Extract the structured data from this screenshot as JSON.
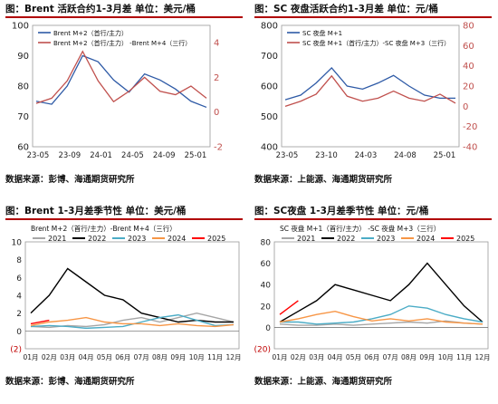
{
  "panels": [
    {
      "title": "图：Brent 活跃合约1-3月差   单位：美元/桶",
      "source": "数据来源：彭博、海通期货研究所"
    },
    {
      "title": "图：SC 夜盘活跃合约1-3月差   单位：元/桶",
      "source": "数据来源：上能源、海通期货研究所"
    },
    {
      "title": "图：Brent 1-3月差季节性    单位：美元/桶",
      "source": "数据来源：彭博、海通期货研究所"
    },
    {
      "title": "图：SC夜盘 1-3月差季节性   单位：元/桶",
      "source": "数据来源：上能源、海通期货研究所"
    }
  ],
  "colors": {
    "blue": "#2e5aa6",
    "red": "#c0504d",
    "gray": "#a6a6a6",
    "black": "#000000",
    "teal": "#4bacc6",
    "orange": "#f79646",
    "red2": "#ff0000",
    "title_rule": "#b00000"
  },
  "chart_data": [
    {
      "type": "line",
      "x_ticks": [
        "23-05",
        "23-09",
        "24-01",
        "24-05",
        "24-09",
        "25-01"
      ],
      "y_left": {
        "min": 60,
        "max": 100,
        "ticks": [
          60,
          70,
          80,
          90,
          100
        ]
      },
      "y_right": {
        "min": -2,
        "max": 5,
        "ticks": [
          -2,
          0,
          2,
          4
        ]
      },
      "series": [
        {
          "name": "Brent M+2（首行/主力）",
          "axis": "left",
          "color": "blue",
          "x": [
            0,
            2,
            4,
            6,
            8,
            10,
            12,
            14,
            16,
            18,
            20,
            22
          ],
          "values": [
            75,
            74,
            80,
            90,
            88,
            82,
            78,
            84,
            82,
            79,
            75,
            73
          ]
        },
        {
          "name": "Brent M+2（首行/主力） -Brent M+4（三行）",
          "axis": "right",
          "color": "red",
          "x": [
            0,
            2,
            4,
            6,
            8,
            10,
            12,
            14,
            16,
            18,
            20,
            22
          ],
          "values": [
            0.5,
            0.8,
            1.8,
            3.5,
            1.8,
            0.6,
            1.2,
            2.0,
            1.2,
            1.0,
            1.5,
            0.8
          ]
        }
      ]
    },
    {
      "type": "line",
      "x_ticks": [
        "23-05",
        "23-10",
        "24-03",
        "24-08",
        "25-01"
      ],
      "y_left": {
        "min": 400,
        "max": 800,
        "ticks": [
          400,
          500,
          600,
          700,
          800
        ]
      },
      "y_right": {
        "min": -40,
        "max": 80,
        "ticks": [
          -40,
          -20,
          0,
          20,
          40,
          60,
          80
        ]
      },
      "series": [
        {
          "name": "SC 夜盘 M+1",
          "axis": "left",
          "color": "blue",
          "x": [
            0,
            2,
            4,
            6,
            8,
            10,
            12,
            14,
            16,
            18,
            20,
            22
          ],
          "values": [
            555,
            570,
            610,
            660,
            600,
            590,
            610,
            635,
            600,
            570,
            560,
            560
          ]
        },
        {
          "name": "SC 夜盘 M+1（首行/主力）-SC 夜盘 M+3（三行）",
          "axis": "right",
          "color": "red",
          "x": [
            0,
            2,
            4,
            6,
            8,
            10,
            12,
            14,
            16,
            18,
            20,
            22
          ],
          "values": [
            0,
            5,
            12,
            30,
            10,
            5,
            8,
            15,
            8,
            5,
            12,
            3
          ]
        }
      ]
    },
    {
      "type": "line",
      "title": "Brent M+2（首行/主力）-Brent M+4（三行）",
      "x_ticks": [
        "01月",
        "02月",
        "03月",
        "04月",
        "05月",
        "06月",
        "07月",
        "08月",
        "09月",
        "10月",
        "11月",
        "12月"
      ],
      "y": {
        "min": -2,
        "max": 10,
        "ticks": [
          "(2)",
          "0",
          "2",
          "4",
          "6",
          "8",
          "10"
        ]
      },
      "series": [
        {
          "name": "2021",
          "color": "gray",
          "values": [
            0.5,
            0.4,
            0.6,
            0.5,
            0.7,
            1.2,
            1.5,
            1.0,
            1.5,
            2.0,
            1.5,
            1.0
          ]
        },
        {
          "name": "2022",
          "color": "black",
          "values": [
            2.0,
            4.0,
            7.0,
            5.5,
            4.0,
            3.5,
            2.0,
            1.5,
            1.0,
            1.2,
            1.0,
            1.0
          ]
        },
        {
          "name": "2023",
          "color": "teal",
          "values": [
            0.5,
            0.6,
            0.5,
            0.3,
            0.4,
            0.5,
            1.0,
            1.5,
            1.8,
            1.2,
            0.6,
            0.7
          ]
        },
        {
          "name": "2024",
          "color": "orange",
          "values": [
            0.6,
            1.0,
            1.2,
            1.5,
            1.0,
            0.8,
            0.8,
            0.6,
            0.8,
            0.6,
            0.5,
            0.7
          ]
        },
        {
          "name": "2025",
          "color": "red2",
          "values": [
            0.8,
            1.2,
            null,
            null,
            null,
            null,
            null,
            null,
            null,
            null,
            null,
            null
          ]
        }
      ]
    },
    {
      "type": "line",
      "title": "SC 夜盘 M+1（首行/主力） -SC 夜盘 M+3（三行）",
      "x_ticks": [
        "01月",
        "02月",
        "03月",
        "04月",
        "05月",
        "06月",
        "07月",
        "08月",
        "09月",
        "10月",
        "11月",
        "12月"
      ],
      "y": {
        "min": -20,
        "max": 80,
        "ticks": [
          "(20)",
          "0",
          "20",
          "40",
          "60",
          "80"
        ]
      },
      "series": [
        {
          "name": "2021",
          "color": "gray",
          "values": [
            3,
            2,
            2,
            3,
            2,
            3,
            4,
            5,
            4,
            6,
            4,
            3
          ]
        },
        {
          "name": "2022",
          "color": "black",
          "values": [
            5,
            15,
            25,
            40,
            35,
            30,
            25,
            40,
            60,
            40,
            20,
            5
          ]
        },
        {
          "name": "2023",
          "color": "teal",
          "values": [
            5,
            5,
            3,
            4,
            5,
            8,
            12,
            20,
            18,
            12,
            8,
            5
          ]
        },
        {
          "name": "2024",
          "color": "orange",
          "values": [
            5,
            8,
            12,
            15,
            10,
            6,
            8,
            6,
            8,
            5,
            4,
            3
          ]
        },
        {
          "name": "2025",
          "color": "red2",
          "values": [
            12,
            25,
            null,
            null,
            null,
            null,
            null,
            null,
            null,
            null,
            null,
            null
          ]
        }
      ]
    }
  ]
}
